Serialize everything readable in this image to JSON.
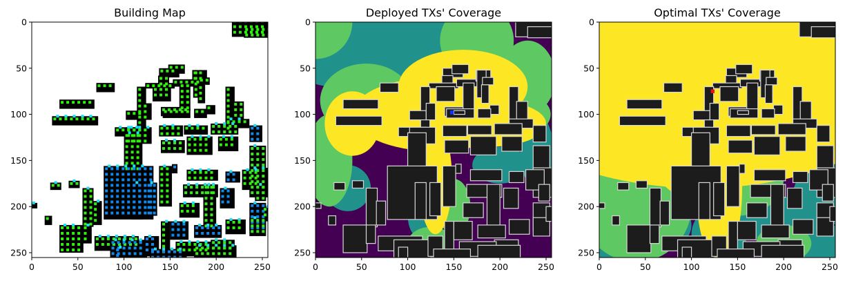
{
  "chart_data": [
    {
      "type": "heatmap",
      "title": "Building Map",
      "xlabel": "",
      "ylabel": "",
      "xlim": [
        0,
        256
      ],
      "ylim": [
        256,
        0
      ],
      "xticks": [
        "0",
        "50",
        "100",
        "150",
        "200",
        "250"
      ],
      "yticks": [
        "0",
        "50",
        "100",
        "150",
        "200",
        "250"
      ],
      "colors": {
        "background": "#ffffff",
        "building": "#000000",
        "green_marker": "#33ee11",
        "blue_marker": "#1188ee",
        "cyan_marker": "#22ddee"
      }
    },
    {
      "type": "heatmap",
      "title": "Deployed TXs' Coverage",
      "xlabel": "",
      "ylabel": "",
      "xlim": [
        0,
        256
      ],
      "ylim": [
        256,
        0
      ],
      "xticks": [
        "0",
        "50",
        "100",
        "150",
        "200",
        "250"
      ],
      "yticks": [
        "0",
        "50",
        "100",
        "150",
        "200",
        "250"
      ],
      "tx_positions": [
        [
          148,
          98
        ]
      ],
      "colors": {
        "level_0": "#440154",
        "level_1": "#21918c",
        "level_2": "#5ec962",
        "level_3": "#fde725",
        "building": "#1c1c1c",
        "tx": "#1133ff"
      }
    },
    {
      "type": "heatmap",
      "title": "Optimal TXs' Coverage",
      "xlabel": "",
      "ylabel": "",
      "xlim": [
        0,
        256
      ],
      "ylim": [
        256,
        0
      ],
      "xticks": [
        "0",
        "50",
        "100",
        "150",
        "200",
        "250"
      ],
      "yticks": [
        "0",
        "50",
        "100",
        "150",
        "200",
        "250"
      ],
      "tx_positions": [
        [
          123,
          75
        ]
      ],
      "colors": {
        "level_0": "#440154",
        "level_1": "#21918c",
        "level_2": "#5ec962",
        "level_3": "#fde725",
        "building": "#1c1c1c",
        "tx": "#ee1111"
      }
    }
  ]
}
